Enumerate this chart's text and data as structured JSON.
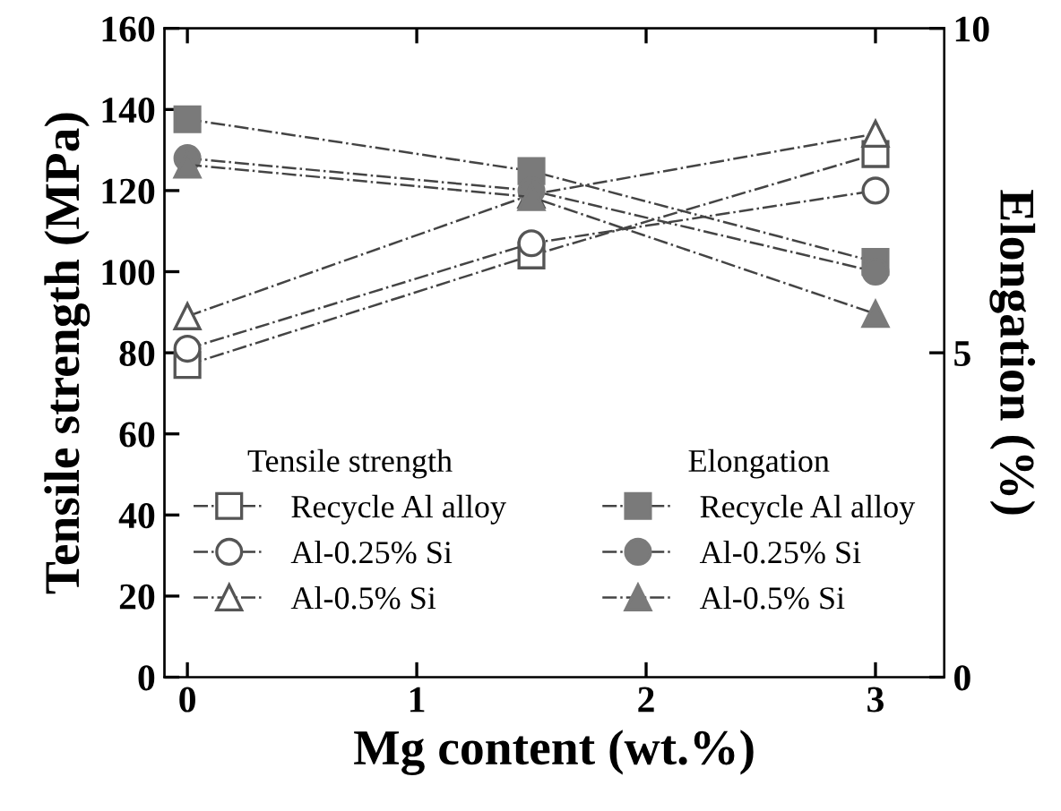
{
  "chart_data": {
    "type": "line",
    "xlabel": "Mg content (wt.%)",
    "ylabel": "Tensile strength (MPa)",
    "y2label": "Elongation (%)",
    "x": [
      0,
      1.5,
      3
    ],
    "xlim": [
      -0.1,
      3.3
    ],
    "xticks": [
      0,
      1,
      2,
      3
    ],
    "ylim": [
      0,
      160
    ],
    "yticks": [
      0,
      20,
      40,
      60,
      80,
      100,
      120,
      140,
      160
    ],
    "y2lim": [
      0,
      10
    ],
    "y2ticks": [
      0,
      5,
      10
    ],
    "legend": "bottom",
    "legend_title": [
      "Tensile strength",
      "Elongation"
    ],
    "line_style": "dashdot",
    "grid": false,
    "series": [
      {
        "name": "Recycle Al alloy",
        "color": "#555555",
        "marker": "square",
        "values": [
          77,
          104,
          129
        ]
      },
      {
        "name": "Al-0.25% Si",
        "color": "#555555",
        "marker": "circle",
        "values": [
          81,
          107,
          120
        ]
      },
      {
        "name": "Al-0.5% Si",
        "color": "#555555",
        "marker": "triangle",
        "values": [
          89,
          119,
          134
        ]
      },
      {
        "name": "Recycle Al alloy",
        "color": "#7a7a7a",
        "marker": "square",
        "axis": "y2",
        "values": [
          8.6,
          7.8,
          6.4
        ]
      },
      {
        "name": "Al-0.25% Si",
        "color": "#7a7a7a",
        "marker": "circle",
        "axis": "y2",
        "values": [
          8.0,
          7.5,
          6.25
        ]
      },
      {
        "name": "Al-0.5% Si",
        "color": "#7a7a7a",
        "marker": "triangle",
        "axis": "y2",
        "values": [
          7.9,
          7.4,
          5.6
        ]
      }
    ]
  }
}
